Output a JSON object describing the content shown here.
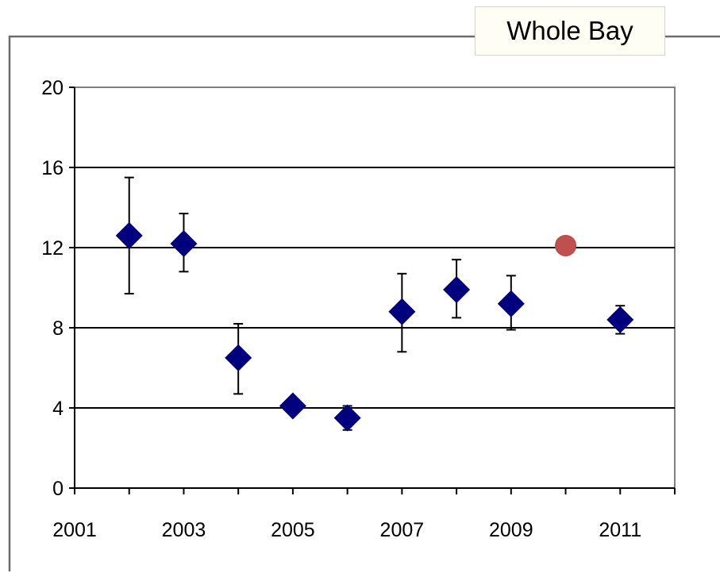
{
  "chart_data": {
    "type": "scatter",
    "title": "Whole Bay",
    "xlabel": "",
    "ylabel": "",
    "xlim": [
      2001,
      2012
    ],
    "ylim": [
      0,
      20
    ],
    "x_ticks": [
      2001,
      2003,
      2005,
      2007,
      2009,
      2011
    ],
    "y_ticks": [
      0,
      4,
      8,
      12,
      16,
      20
    ],
    "x_tick_labels": [
      "2001",
      "2003",
      "2005",
      "2007",
      "2009",
      "2011"
    ],
    "y_tick_labels": [
      "0",
      "4",
      "8",
      "12",
      "16",
      "20"
    ],
    "grid": "horizontal",
    "legend": "none",
    "series": [
      {
        "marker": "diamond",
        "color": "#00007f",
        "points": [
          {
            "x": 2002,
            "y": 12.6,
            "err_low": 9.7,
            "err_high": 15.5
          },
          {
            "x": 2003,
            "y": 12.2,
            "err_low": 10.8,
            "err_high": 13.7
          },
          {
            "x": 2004,
            "y": 6.5,
            "err_low": 4.7,
            "err_high": 8.2
          },
          {
            "x": 2005,
            "y": 4.1,
            "err_low": 4.1,
            "err_high": 4.1
          },
          {
            "x": 2006,
            "y": 3.5,
            "err_low": 2.9,
            "err_high": 4.1
          },
          {
            "x": 2007,
            "y": 8.8,
            "err_low": 6.8,
            "err_high": 10.7
          },
          {
            "x": 2008,
            "y": 9.9,
            "err_low": 8.5,
            "err_high": 11.4
          },
          {
            "x": 2009,
            "y": 9.2,
            "err_low": 7.9,
            "err_high": 10.6
          },
          {
            "x": 2011,
            "y": 8.4,
            "err_low": 7.7,
            "err_high": 9.1
          }
        ]
      },
      {
        "marker": "circle",
        "color": "#c0504d",
        "points": [
          {
            "x": 2010,
            "y": 12.1
          }
        ]
      }
    ]
  }
}
